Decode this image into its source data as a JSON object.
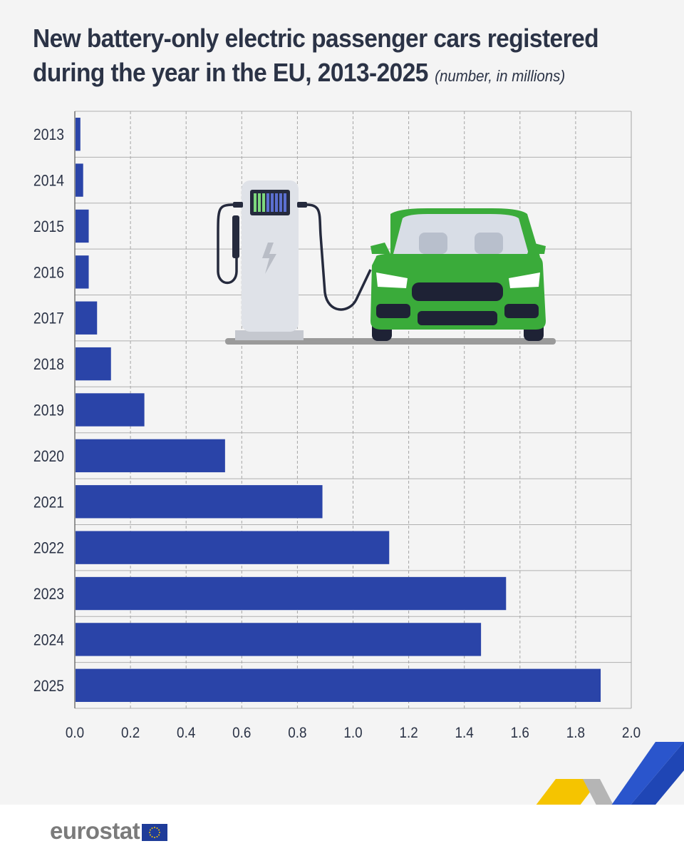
{
  "title": {
    "line1": "New battery-only electric passenger cars registered",
    "line2": "during the year in the EU, 2013-2025",
    "subtitle": "(number, in millions)"
  },
  "logo": {
    "text": "eurostat"
  },
  "colors": {
    "bar": "#2a44a8",
    "car": "#3aab3a",
    "title": "#2b3346",
    "grid": "#a5a5a5",
    "accent_yellow": "#f5c400",
    "accent_blue": "#1f46b5"
  },
  "chart_data": {
    "type": "bar",
    "orientation": "horizontal",
    "categories": [
      "2013",
      "2014",
      "2015",
      "2016",
      "2017",
      "2018",
      "2019",
      "2020",
      "2021",
      "2022",
      "2023",
      "2024",
      "2025"
    ],
    "values": [
      0.02,
      0.03,
      0.05,
      0.05,
      0.08,
      0.13,
      0.25,
      0.54,
      0.89,
      1.13,
      1.55,
      1.46,
      1.89
    ],
    "xlim": [
      0,
      2.0
    ],
    "xticks": [
      "0.0",
      "0.2",
      "0.4",
      "0.6",
      "0.8",
      "1.0",
      "1.2",
      "1.4",
      "1.6",
      "1.8",
      "2.0"
    ],
    "grid": true,
    "xlabel": "",
    "ylabel": ""
  }
}
